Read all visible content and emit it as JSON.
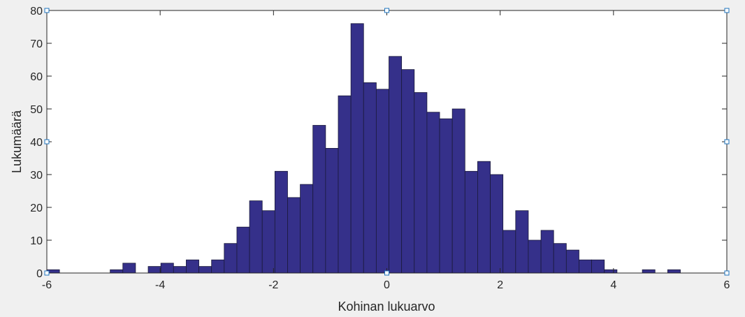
{
  "chart_data": {
    "type": "bar",
    "subtype": "histogram",
    "title": "",
    "xlabel": "Kohinan lukuarvo",
    "ylabel": "Lukumäärä",
    "xlim": [
      -6,
      6
    ],
    "ylim": [
      0,
      80
    ],
    "xticks": [
      -6,
      -4,
      -2,
      0,
      2,
      4,
      6
    ],
    "yticks": [
      0,
      10,
      20,
      30,
      40,
      50,
      60,
      70,
      80
    ],
    "grid": false,
    "bar_color": "#35308a",
    "bar_edge_color": "#1a1a3a",
    "background_color": "#f0f0f0",
    "plot_area_color": "#ffffff",
    "bin_width": 0.2236,
    "bins": [
      {
        "x0": -6.0,
        "count": 1
      },
      {
        "x0": -5.7764,
        "count": 0
      },
      {
        "x0": -5.5528,
        "count": 0
      },
      {
        "x0": -5.3292,
        "count": 0
      },
      {
        "x0": -5.1056,
        "count": 0
      },
      {
        "x0": -4.882,
        "count": 1
      },
      {
        "x0": -4.6584,
        "count": 3
      },
      {
        "x0": -4.4348,
        "count": 0
      },
      {
        "x0": -4.2112,
        "count": 2
      },
      {
        "x0": -3.9876,
        "count": 3
      },
      {
        "x0": -3.764,
        "count": 2
      },
      {
        "x0": -3.5404,
        "count": 4
      },
      {
        "x0": -3.3168,
        "count": 2
      },
      {
        "x0": -3.0932,
        "count": 4
      },
      {
        "x0": -2.8696,
        "count": 9
      },
      {
        "x0": -2.646,
        "count": 14
      },
      {
        "x0": -2.4224,
        "count": 22
      },
      {
        "x0": -2.1988,
        "count": 19
      },
      {
        "x0": -1.9752,
        "count": 31
      },
      {
        "x0": -1.7516,
        "count": 23
      },
      {
        "x0": -1.528,
        "count": 27
      },
      {
        "x0": -1.3044,
        "count": 45
      },
      {
        "x0": -1.0808,
        "count": 38
      },
      {
        "x0": -0.8572,
        "count": 54
      },
      {
        "x0": -0.6336,
        "count": 76
      },
      {
        "x0": -0.41,
        "count": 58
      },
      {
        "x0": -0.1864,
        "count": 56
      },
      {
        "x0": 0.0372,
        "count": 66
      },
      {
        "x0": 0.2608,
        "count": 62
      },
      {
        "x0": 0.4844,
        "count": 55
      },
      {
        "x0": 0.708,
        "count": 49
      },
      {
        "x0": 0.9316,
        "count": 47
      },
      {
        "x0": 1.1552,
        "count": 50
      },
      {
        "x0": 1.3788,
        "count": 31
      },
      {
        "x0": 1.6024,
        "count": 34
      },
      {
        "x0": 1.826,
        "count": 30
      },
      {
        "x0": 2.0496,
        "count": 13
      },
      {
        "x0": 2.2732,
        "count": 19
      },
      {
        "x0": 2.4968,
        "count": 10
      },
      {
        "x0": 2.7204,
        "count": 13
      },
      {
        "x0": 2.944,
        "count": 9
      },
      {
        "x0": 3.1676,
        "count": 7
      },
      {
        "x0": 3.3912,
        "count": 4
      },
      {
        "x0": 3.6148,
        "count": 4
      },
      {
        "x0": 3.8384,
        "count": 1
      },
      {
        "x0": 4.062,
        "count": 0
      },
      {
        "x0": 4.2856,
        "count": 0
      },
      {
        "x0": 4.5092,
        "count": 1
      },
      {
        "x0": 4.7328,
        "count": 0
      },
      {
        "x0": 4.9564,
        "count": 1
      }
    ]
  }
}
